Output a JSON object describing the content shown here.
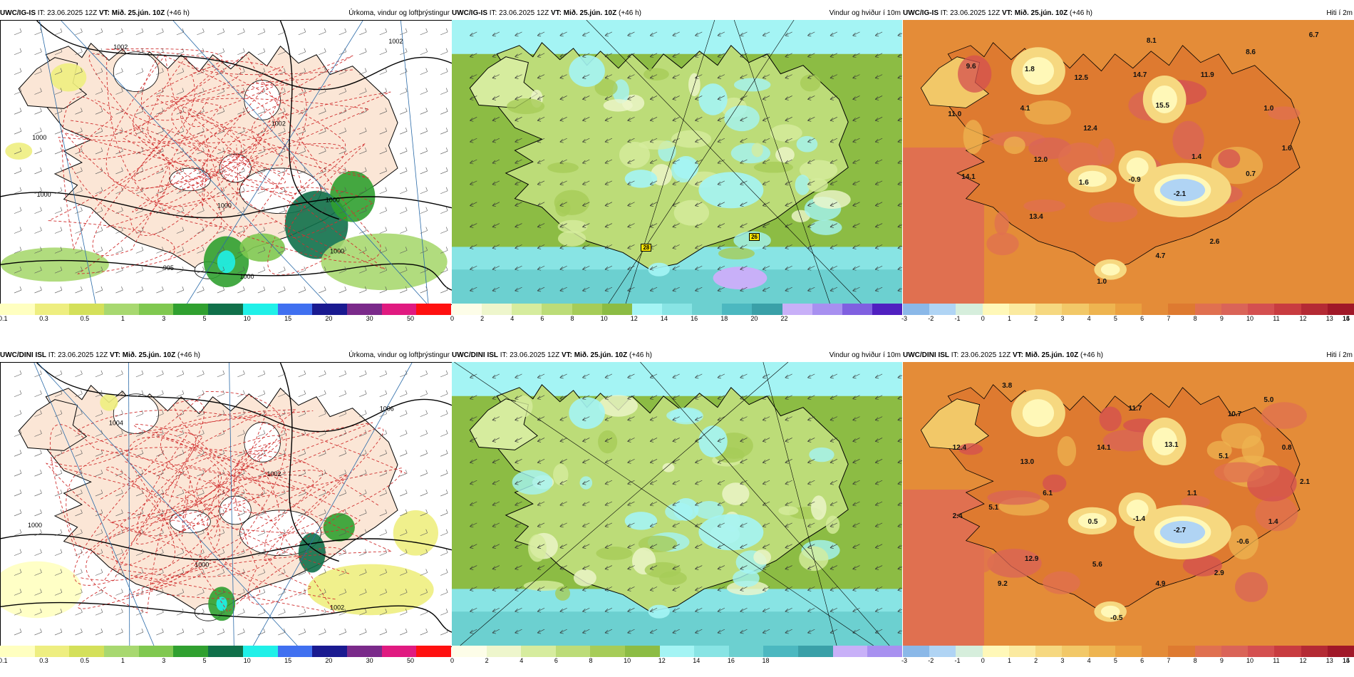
{
  "rows": [
    {
      "panels": [
        {
          "kind": "precip",
          "model": "UWC/IG-IS",
          "it_label": "IT:",
          "it_value": "23.06.2025 12Z",
          "vt_label": "VT:",
          "vt_value": "Mið. 25.jún. 10Z",
          "lead": "(+46 h)",
          "title": "Úrkoma, vindur og loftþrýstingur",
          "colorbar": {
            "colors": [
              "#ffffc0",
              "#eeee80",
              "#d4e05a",
              "#a8d870",
              "#80c850",
              "#30a030",
              "#10704a",
              "#20f0e8",
              "#4070f0",
              "#1a1a90",
              "#7a2a8a",
              "#e01a80",
              "#ff1010"
            ],
            "labels": [
              "0.1",
              "0.3",
              "0.5",
              "1",
              "3",
              "5",
              "10",
              "15",
              "20",
              "30",
              "50"
            ]
          },
          "isobars": [
            "1002",
            "1000",
            "1002",
            "1000",
            "1000",
            "1000",
            "995",
            "1000",
            "1000",
            "1002"
          ]
        },
        {
          "kind": "wind",
          "model": "UWC/IG-IS",
          "it_label": "IT:",
          "it_value": "23.06.2025 12Z",
          "vt_label": "VT:",
          "vt_value": "Mið. 25.jún. 10Z",
          "lead": "(+46 h)",
          "title": "Vindur og hviður í 10m",
          "colorbar": {
            "colors": [
              "#fdfde8",
              "#eef6cc",
              "#d6ec9e",
              "#bcdc78",
              "#a6cc58",
              "#8cbc44",
              "#a4f4f4",
              "#88e4e4",
              "#6cd0d0",
              "#4cb8c0",
              "#3aa0a8",
              "#c8b0f8",
              "#a890f0",
              "#8060e0",
              "#5020c0"
            ],
            "labels": [
              "0",
              "2",
              "4",
              "6",
              "8",
              "10",
              "12",
              "14",
              "16",
              "18",
              "20",
              "22"
            ]
          },
          "markers": [
            "28",
            "26"
          ]
        },
        {
          "kind": "temp",
          "model": "UWC/IG-IS",
          "it_label": "IT:",
          "it_value": "23.06.2025 12Z",
          "vt_label": "VT:",
          "vt_value": "Mið. 25.jún. 10Z",
          "lead": "(+46 h)",
          "title": "Hiti í 2m",
          "colorbar": {
            "colors": [
              "#8ab8e8",
              "#b0d4f4",
              "#d6eedc",
              "#fff8b8",
              "#fbeaa0",
              "#f6d880",
              "#f2c868",
              "#eeb450",
              "#eaa040",
              "#e48c38",
              "#de7a30",
              "#e07050",
              "#da6458",
              "#d45050",
              "#c83c40",
              "#b42a34",
              "#a01828"
            ],
            "labels": [
              "-3",
              "-2",
              "-1",
              "0",
              "1",
              "2",
              "3",
              "4",
              "5",
              "6",
              "7",
              "8",
              "9",
              "10",
              "11",
              "12",
              "13",
              "14",
              "15",
              "16"
            ]
          },
          "values": [
            "6.7",
            "8.1",
            "8.6",
            "9.6",
            "1.8",
            "12.5",
            "14.7",
            "11.9",
            "11.0",
            "4.1",
            "15.5",
            "1.0",
            "12.4",
            "1.6",
            "12.0",
            "1.4",
            "14.1",
            "1.6",
            "-0.9",
            "0.7",
            "-2.1",
            "13.4",
            "2.6",
            "4.7",
            "1.0"
          ]
        }
      ]
    },
    {
      "panels": [
        {
          "kind": "precip",
          "model": "UWC/DINI ISL",
          "it_label": "IT:",
          "it_value": "23.06.2025 12Z",
          "vt_label": "VT:",
          "vt_value": "Mið. 25.jún. 10Z",
          "lead": "(+46 h)",
          "title": "Úrkoma, vindur og loftþrýstingur",
          "colorbar": {
            "colors": [
              "#ffffc0",
              "#eeee80",
              "#d4e05a",
              "#a8d870",
              "#80c850",
              "#30a030",
              "#10704a",
              "#20f0e8",
              "#4070f0",
              "#1a1a90",
              "#7a2a8a",
              "#e01a80",
              "#ff1010"
            ],
            "labels": [
              "0.1",
              "0.3",
              "0.5",
              "1",
              "3",
              "5",
              "10",
              "15",
              "20",
              "30",
              "50"
            ]
          },
          "isobars": [
            "1004",
            "1006",
            "1002",
            "1000",
            "1000",
            "1002"
          ]
        },
        {
          "kind": "wind",
          "model": "UWC/DINI ISL",
          "it_label": "IT:",
          "it_value": "23.06.2025 12Z",
          "vt_label": "VT:",
          "vt_value": "Mið. 25.jún. 10Z",
          "lead": "(+46 h)",
          "title": "Vindur og hviður í 10m",
          "colorbar": {
            "colors": [
              "#fdfde8",
              "#eef6cc",
              "#d6ec9e",
              "#bcdc78",
              "#a6cc58",
              "#8cbc44",
              "#a4f4f4",
              "#88e4e4",
              "#6cd0d0",
              "#4cb8c0",
              "#3aa0a8",
              "#c8b0f8",
              "#a890f0"
            ],
            "labels": [
              "0",
              "2",
              "4",
              "6",
              "8",
              "10",
              "12",
              "14",
              "16",
              "18"
            ]
          },
          "markers": []
        },
        {
          "kind": "temp",
          "model": "UWC/DINI ISL",
          "it_label": "IT:",
          "it_value": "23.06.2025 12Z",
          "vt_label": "VT:",
          "vt_value": "Mið. 25.jún. 10Z",
          "lead": "(+46 h)",
          "title": "Hiti í 2m",
          "colorbar": {
            "colors": [
              "#8ab8e8",
              "#b0d4f4",
              "#d6eedc",
              "#fff8b8",
              "#fbeaa0",
              "#f6d880",
              "#f2c868",
              "#eeb450",
              "#eaa040",
              "#e48c38",
              "#de7a30",
              "#e07050",
              "#da6458",
              "#d45050",
              "#c83c40",
              "#b42a34",
              "#a01828"
            ],
            "labels": [
              "-3",
              "-2",
              "-1",
              "0",
              "1",
              "2",
              "3",
              "4",
              "5",
              "6",
              "7",
              "8",
              "9",
              "10",
              "11",
              "12",
              "13",
              "14",
              "15"
            ]
          },
          "values": [
            "3.8",
            "11.7",
            "5.0",
            "10.7",
            "12.4",
            "14.1",
            "13.1",
            "13.0",
            "5.1",
            "0.8",
            "6.1",
            "2.1",
            "5.1",
            "1.1",
            "2.4",
            "0.5",
            "-1.4",
            "-2.7",
            "1.4",
            "-0.6",
            "12.9",
            "5.6",
            "9.2",
            "4.9",
            "2.9",
            "-0.5"
          ]
        }
      ]
    }
  ]
}
